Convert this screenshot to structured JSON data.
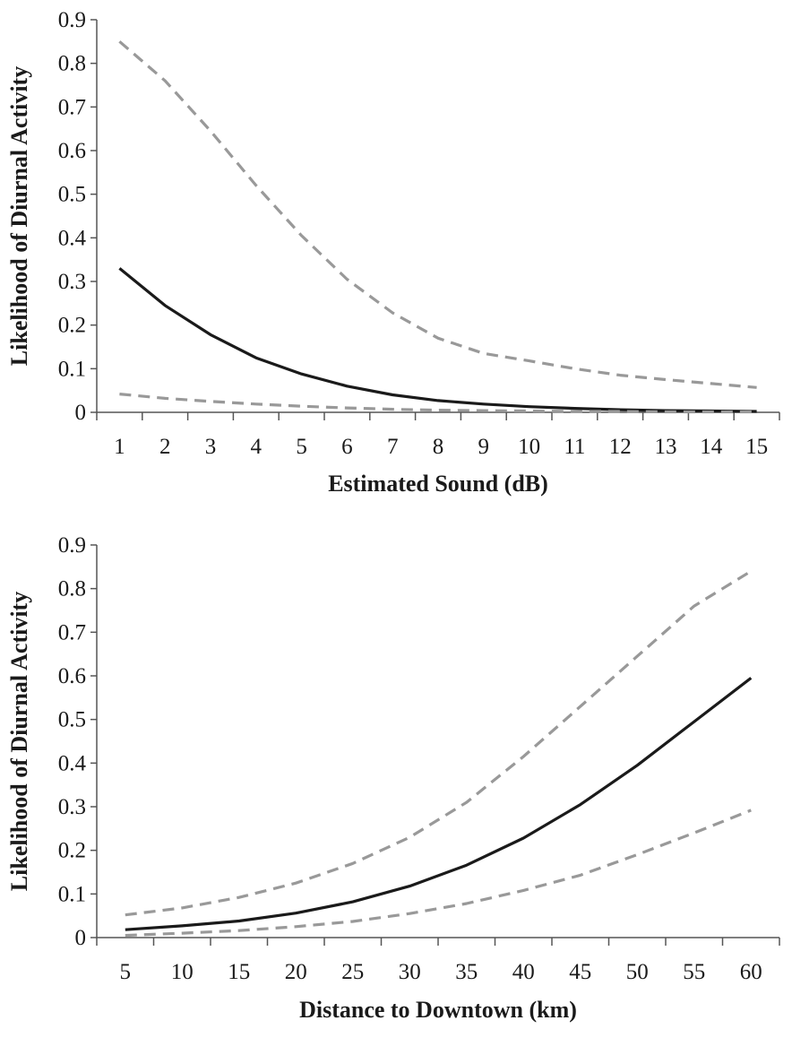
{
  "chart_data": [
    {
      "type": "line",
      "xlabel": "Estimated Sound (dB)",
      "ylabel": "Likelihood of Diurnal Activity",
      "ylim": [
        0,
        0.9
      ],
      "yticks": [
        "0",
        "0.1",
        "0.2",
        "0.3",
        "0.4",
        "0.5",
        "0.6",
        "0.7",
        "0.8",
        "0.9"
      ],
      "categories": [
        "1",
        "2",
        "3",
        "4",
        "5",
        "6",
        "7",
        "8",
        "9",
        "10",
        "11",
        "12",
        "13",
        "14",
        "15"
      ],
      "grid": false,
      "legend": "none",
      "series": [
        {
          "values": [
            0.85,
            0.76,
            0.645,
            0.52,
            0.405,
            0.305,
            0.228,
            0.17,
            0.135,
            0.118,
            0.1,
            0.085,
            0.075,
            0.066,
            0.057
          ],
          "color": "#999999",
          "style": "dashed"
        },
        {
          "values": [
            0.33,
            0.245,
            0.178,
            0.125,
            0.088,
            0.06,
            0.04,
            0.027,
            0.019,
            0.013,
            0.009,
            0.006,
            0.004,
            0.003,
            0.002
          ],
          "color": "#1a1a1a",
          "style": "solid"
        },
        {
          "values": [
            0.042,
            0.032,
            0.025,
            0.019,
            0.014,
            0.01,
            0.007,
            0.005,
            0.004,
            0.003,
            0.002,
            0.002,
            0.001,
            0.001,
            0.001
          ],
          "color": "#999999",
          "style": "dashed"
        }
      ]
    },
    {
      "type": "line",
      "xlabel": "Distance to Downtown (km)",
      "ylabel": "Likelihood of Diurnal Activity",
      "ylim": [
        0,
        0.9
      ],
      "yticks": [
        "0",
        "0.1",
        "0.2",
        "0.3",
        "0.4",
        "0.5",
        "0.6",
        "0.7",
        "0.8",
        "0.9"
      ],
      "categories": [
        "5",
        "10",
        "15",
        "20",
        "25",
        "30",
        "35",
        "40",
        "45",
        "50",
        "55",
        "60"
      ],
      "grid": false,
      "legend": "none",
      "series": [
        {
          "values": [
            0.052,
            0.068,
            0.092,
            0.125,
            0.17,
            0.23,
            0.31,
            0.415,
            0.53,
            0.645,
            0.76,
            0.84
          ],
          "color": "#999999",
          "style": "dashed"
        },
        {
          "values": [
            0.018,
            0.027,
            0.038,
            0.056,
            0.082,
            0.118,
            0.166,
            0.228,
            0.305,
            0.395,
            0.495,
            0.595
          ],
          "color": "#1a1a1a",
          "style": "solid"
        },
        {
          "values": [
            0.005,
            0.01,
            0.016,
            0.025,
            0.037,
            0.055,
            0.078,
            0.108,
            0.143,
            0.19,
            0.24,
            0.292
          ],
          "color": "#999999",
          "style": "dashed"
        }
      ]
    }
  ]
}
